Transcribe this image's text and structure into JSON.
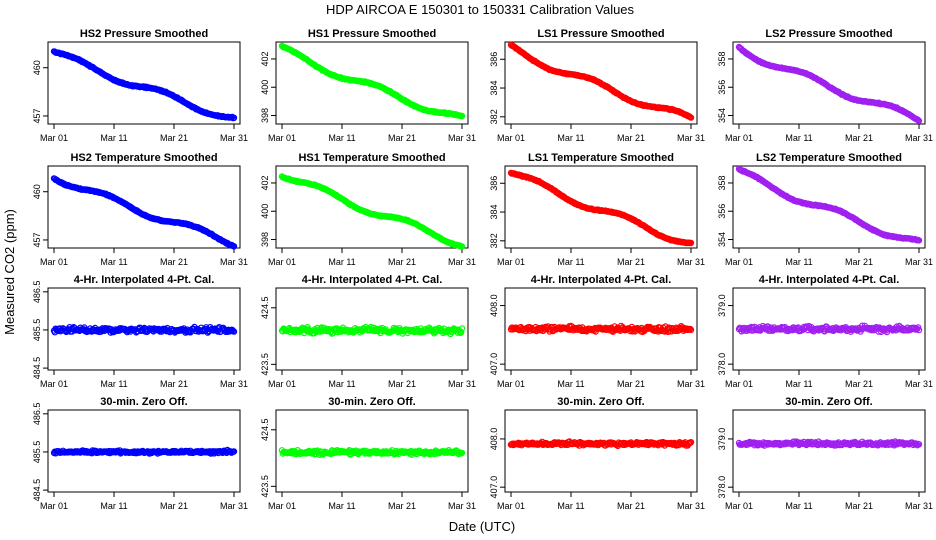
{
  "figure": {
    "title": "HDP   AIRCOA E   150301 to 150331   Calibration Values",
    "xlabel": "Date (UTC)",
    "ylabel": "Measured CO2 (ppm)"
  },
  "colors": {
    "HS2": "#0000ff",
    "HS1": "#00ff00",
    "LS1": "#ff0000",
    "LS2": "#a020f0"
  },
  "chart_data": [
    {
      "type": "scatter",
      "row": 0,
      "col": 0,
      "title": "HS2 Pressure Smoothed",
      "series": "HS2",
      "shape": "trend",
      "start": 461.0,
      "end": 456.8,
      "ylim": [
        456.5,
        461.6
      ],
      "yticks": [
        457,
        460
      ],
      "yticklabels": [
        "457",
        "460"
      ],
      "xticks": [
        "Mar 01",
        "Mar 11",
        "Mar 21",
        "Mar 31"
      ]
    },
    {
      "type": "scatter",
      "row": 0,
      "col": 1,
      "title": "HS1 Pressure Smoothed",
      "series": "HS1",
      "shape": "trend",
      "start": 402.7,
      "end": 397.7,
      "ylim": [
        397.4,
        403.2
      ],
      "yticks": [
        398,
        400,
        402
      ],
      "yticklabels": [
        "398",
        "400",
        "402"
      ],
      "xticks": [
        "Mar 01",
        "Mar 11",
        "Mar 21",
        "Mar 31"
      ]
    },
    {
      "type": "scatter",
      "row": 0,
      "col": 2,
      "title": "LS1 Pressure Smoothed",
      "series": "LS1",
      "shape": "trend",
      "start": 386.8,
      "end": 381.8,
      "ylim": [
        381.5,
        387.2
      ],
      "yticks": [
        382,
        384,
        386
      ],
      "yticklabels": [
        "382",
        "384",
        "386"
      ],
      "xticks": [
        "Mar 01",
        "Mar 11",
        "Mar 21",
        "Mar 31"
      ]
    },
    {
      "type": "scatter",
      "row": 0,
      "col": 3,
      "title": "LS2 Pressure Smoothed",
      "series": "LS2",
      "shape": "trend",
      "start": 358.8,
      "end": 353.7,
      "ylim": [
        353.4,
        359.2
      ],
      "yticks": [
        354,
        356,
        358
      ],
      "yticklabels": [
        "354",
        "356",
        "358"
      ],
      "xticks": [
        "Mar 01",
        "Mar 11",
        "Mar 21",
        "Mar 31"
      ]
    },
    {
      "type": "scatter",
      "row": 1,
      "col": 0,
      "title": "HS2 Temperature Smoothed",
      "series": "HS2",
      "shape": "trend",
      "start": 461.0,
      "end": 456.8,
      "ylim": [
        456.5,
        461.6
      ],
      "yticks": [
        457,
        460
      ],
      "yticklabels": [
        "457",
        "460"
      ],
      "xticks": [
        "Mar 01",
        "Mar 11",
        "Mar 21",
        "Mar 31"
      ]
    },
    {
      "type": "scatter",
      "row": 1,
      "col": 1,
      "title": "HS1 Temperature Smoothed",
      "series": "HS1",
      "shape": "trend",
      "start": 402.7,
      "end": 397.7,
      "ylim": [
        397.4,
        403.2
      ],
      "yticks": [
        398,
        400,
        402
      ],
      "yticklabels": [
        "398",
        "400",
        "402"
      ],
      "xticks": [
        "Mar 01",
        "Mar 11",
        "Mar 21",
        "Mar 31"
      ]
    },
    {
      "type": "scatter",
      "row": 1,
      "col": 2,
      "title": "LS1 Temperature Smoothed",
      "series": "LS1",
      "shape": "trend",
      "start": 386.8,
      "end": 381.8,
      "ylim": [
        381.5,
        387.2
      ],
      "yticks": [
        382,
        384,
        386
      ],
      "yticklabels": [
        "382",
        "384",
        "386"
      ],
      "xticks": [
        "Mar 01",
        "Mar 11",
        "Mar 21",
        "Mar 31"
      ]
    },
    {
      "type": "scatter",
      "row": 1,
      "col": 3,
      "title": "LS2 Temperature Smoothed",
      "series": "LS2",
      "shape": "trend",
      "start": 358.8,
      "end": 353.7,
      "ylim": [
        353.4,
        359.2
      ],
      "yticks": [
        354,
        356,
        358
      ],
      "yticklabels": [
        "354",
        "356",
        "358"
      ],
      "xticks": [
        "Mar 01",
        "Mar 11",
        "Mar 21",
        "Mar 31"
      ]
    },
    {
      "type": "scatter",
      "row": 2,
      "col": 0,
      "title": "4-Hr. Interpolated 4-Pt. Cal.",
      "series": "HS2",
      "shape": "flat",
      "level": 485.5,
      "noise": 0.07,
      "ylim": [
        484.45,
        486.6
      ],
      "yticks": [
        484.5,
        485.5,
        486.5
      ],
      "yticklabels": [
        "484.5",
        "485.5",
        "486.5"
      ],
      "xticks": [
        "Mar 01",
        "Mar 11",
        "Mar 21",
        "Mar 31"
      ]
    },
    {
      "type": "scatter",
      "row": 2,
      "col": 1,
      "title": "4-Hr. Interpolated 4-Pt. Cal.",
      "series": "HS1",
      "shape": "flat",
      "level": 424.1,
      "noise": 0.05,
      "ylim": [
        423.4,
        424.85
      ],
      "yticks": [
        423.5,
        424.5
      ],
      "yticklabels": [
        "423.5",
        "424.5"
      ],
      "xticks": [
        "Mar 01",
        "Mar 11",
        "Mar 21",
        "Mar 31"
      ]
    },
    {
      "type": "scatter",
      "row": 2,
      "col": 2,
      "title": "4-Hr. Interpolated 4-Pt. Cal.",
      "series": "LS1",
      "shape": "flat",
      "level": 407.6,
      "noise": 0.05,
      "ylim": [
        406.9,
        408.3
      ],
      "yticks": [
        407.0,
        408.0
      ],
      "yticklabels": [
        "407.0",
        "408.0"
      ],
      "xticks": [
        "Mar 01",
        "Mar 11",
        "Mar 21",
        "Mar 31"
      ]
    },
    {
      "type": "scatter",
      "row": 2,
      "col": 3,
      "title": "4-Hr. Interpolated 4-Pt. Cal.",
      "series": "LS2",
      "shape": "flat",
      "level": 378.6,
      "noise": 0.05,
      "ylim": [
        377.9,
        379.3
      ],
      "yticks": [
        378.0,
        379.0
      ],
      "yticklabels": [
        "378.0",
        "379.0"
      ],
      "xticks": [
        "Mar 01",
        "Mar 11",
        "Mar 21",
        "Mar 31"
      ]
    },
    {
      "type": "scatter",
      "row": 3,
      "col": 0,
      "title": "30-min. Zero Off.",
      "series": "HS2",
      "shape": "flat",
      "level": 485.5,
      "noise": 0.04,
      "ylim": [
        484.45,
        486.6
      ],
      "yticks": [
        484.5,
        485.5,
        486.5
      ],
      "yticklabels": [
        "484.5",
        "485.5",
        "486.5"
      ],
      "xticks": [
        "Mar 01",
        "Mar 11",
        "Mar 21",
        "Mar 31"
      ]
    },
    {
      "type": "scatter",
      "row": 3,
      "col": 1,
      "title": "30-min. Zero Off.",
      "series": "HS1",
      "shape": "flat",
      "level": 424.1,
      "noise": 0.04,
      "ylim": [
        423.4,
        424.85
      ],
      "yticks": [
        423.5,
        424.5
      ],
      "yticklabels": [
        "423.5",
        "424.5"
      ],
      "xticks": [
        "Mar 01",
        "Mar 11",
        "Mar 21",
        "Mar 31"
      ]
    },
    {
      "type": "scatter",
      "row": 3,
      "col": 2,
      "title": "30-min. Zero Off.",
      "series": "LS1",
      "shape": "flat",
      "level": 407.9,
      "noise": 0.04,
      "ylim": [
        406.9,
        408.6
      ],
      "yticks": [
        407.0,
        408.0
      ],
      "yticklabels": [
        "407.0",
        "408.0"
      ],
      "xticks": [
        "Mar 01",
        "Mar 11",
        "Mar 21",
        "Mar 31"
      ]
    },
    {
      "type": "scatter",
      "row": 3,
      "col": 3,
      "title": "30-min. Zero Off.",
      "series": "LS2",
      "shape": "flat",
      "level": 378.9,
      "noise": 0.04,
      "ylim": [
        377.9,
        379.6
      ],
      "yticks": [
        378.0,
        379.0
      ],
      "yticklabels": [
        "378.0",
        "379.0"
      ],
      "xticks": [
        "Mar 01",
        "Mar 11",
        "Mar 21",
        "Mar 31"
      ]
    }
  ]
}
